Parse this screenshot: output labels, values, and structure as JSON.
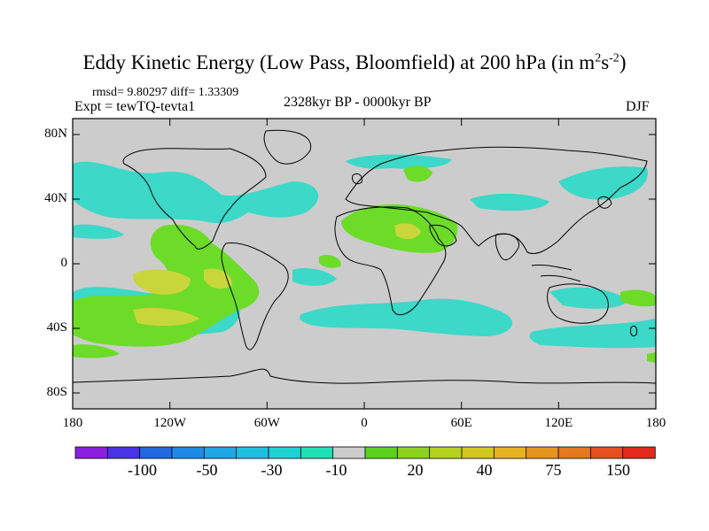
{
  "title": {
    "main": "Eddy Kinetic Energy (Low Pass, Bloomfield) at 200 hPa (in m",
    "sup1": "2",
    "mid": "s",
    "sup2": "-2",
    "close": ")"
  },
  "stats": "rmsd= 9.80297 diff= 1.33309",
  "experiment": "Expt = tewTQ-tevta1",
  "period": "2328kyr BP - 0000kyr BP",
  "season": "DJF",
  "map": {
    "lat_labels": [
      "80N",
      "40N",
      "0",
      "40S",
      "80S"
    ],
    "lon_labels": [
      "180",
      "120W",
      "60W",
      "0",
      "60E",
      "120E",
      "180"
    ]
  },
  "colorbar": {
    "labels": [
      "-100",
      "-50",
      "-30",
      "-10",
      "20",
      "40",
      "75",
      "150"
    ],
    "colors": [
      "#8b1ee0",
      "#4a32e6",
      "#2268e0",
      "#1e8ae6",
      "#1ea8e6",
      "#1ec0e0",
      "#1ed2d2",
      "#1ee0b4",
      "#cccccc",
      "#5ad21e",
      "#8cd21e",
      "#b4d21e",
      "#d2c81e",
      "#e6b41e",
      "#e6961e",
      "#e6781e",
      "#e6501e",
      "#e6281e"
    ]
  },
  "palette": {
    "background": "#cccccc",
    "teal": "#3cd8c8",
    "green": "#6cdc28",
    "yellow": "#c8d63c",
    "coast": "#000000"
  }
}
